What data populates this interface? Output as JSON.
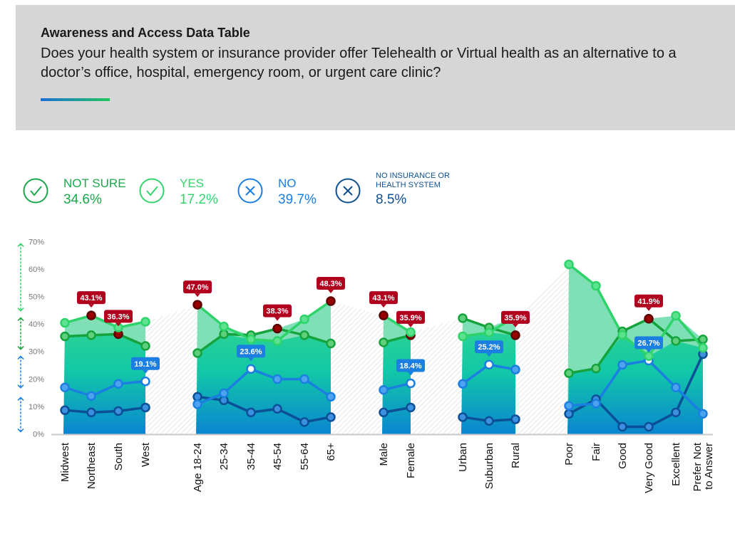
{
  "header": {
    "title": "Awareness and Access Data Table",
    "question": "Does your health system or insurance provider offer Telehealth or Virtual health as an alternative to a doctor’s office, hospital, emergency room, or urgent care clinic?"
  },
  "legend": [
    {
      "name": "NOT SURE",
      "value": "34.6%",
      "icon": "check-circle-icon",
      "color": "#1aa84a"
    },
    {
      "name": "YES",
      "value": "17.2%",
      "icon": "check-circle-icon",
      "color": "#35d46e"
    },
    {
      "name": "NO",
      "value": "39.7%",
      "icon": "x-circle-icon",
      "color": "#1a7fe0"
    },
    {
      "name": "NO INSURANCE OR HEALTH SYSTEM",
      "value": "8.5%",
      "icon": "x-circle-icon",
      "color": "#0d4f91"
    }
  ],
  "chart_data": {
    "type": "line",
    "ylim": [
      0,
      70
    ],
    "yticks": [
      "0%",
      "10%",
      "20%",
      "30%",
      "40%",
      "50%",
      "60%",
      "70%"
    ],
    "grid": false,
    "legend_position": "top-left",
    "groups": [
      {
        "categories": [
          "Midwest",
          "Northeast",
          "South",
          "West"
        ]
      },
      {
        "categories": [
          "Age 18-24",
          "25-34",
          "35-44",
          "45-54",
          "55-64",
          "65+"
        ]
      },
      {
        "categories": [
          "Male",
          "Female"
        ]
      },
      {
        "categories": [
          "Urban",
          "Suburban",
          "Rural"
        ]
      },
      {
        "categories": [
          "Poor",
          "Fair",
          "Good",
          "Very Good",
          "Excellent",
          "Prefer Not to Answer"
        ]
      }
    ],
    "series": [
      {
        "key": "yes",
        "color": "#2ed36a",
        "values": [
          40.4,
          43.1,
          38.7,
          40.8,
          47.0,
          39.1,
          34.4,
          33.8,
          41.7,
          48.3,
          43.1,
          37.0,
          35.5,
          36.9,
          42.6,
          61.7,
          53.9,
          36.0,
          28.3,
          43.0,
          31.3
        ]
      },
      {
        "key": "not_sure",
        "color": "#14a33c",
        "values": [
          35.5,
          35.9,
          36.3,
          32.0,
          29.4,
          36.3,
          35.9,
          38.3,
          35.9,
          32.9,
          33.3,
          35.9,
          42.1,
          38.7,
          35.9,
          22.1,
          23.8,
          37.3,
          41.9,
          33.8,
          34.4
        ]
      },
      {
        "key": "no",
        "color": "#1a7fe0",
        "values": [
          16.9,
          13.8,
          18.2,
          19.1,
          10.8,
          14.8,
          23.6,
          19.9,
          19.9,
          13.5,
          16.0,
          18.4,
          18.2,
          25.2,
          23.4,
          10.2,
          11.0,
          25.1,
          26.7,
          16.9,
          7.3
        ]
      },
      {
        "key": "no_insurance",
        "color": "#0b4f96",
        "values": [
          8.6,
          7.8,
          8.3,
          9.6,
          13.5,
          12.2,
          7.8,
          9.1,
          4.3,
          6.1,
          7.8,
          9.6,
          6.1,
          4.7,
          5.3,
          7.3,
          12.6,
          2.6,
          2.6,
          7.8,
          29.0
        ]
      }
    ],
    "annotations": [
      {
        "index": 1,
        "series": "yes",
        "label": "43.1%",
        "kind": "red"
      },
      {
        "index": 2,
        "series": "not_sure",
        "label": "36.3%",
        "kind": "red"
      },
      {
        "index": 3,
        "series": "no",
        "label": "19.1%",
        "kind": "blue"
      },
      {
        "index": 4,
        "series": "yes",
        "label": "47.0%",
        "kind": "red"
      },
      {
        "index": 6,
        "series": "no",
        "label": "23.6%",
        "kind": "blue"
      },
      {
        "index": 7,
        "series": "not_sure",
        "label": "38.3%",
        "kind": "red"
      },
      {
        "index": 9,
        "series": "yes",
        "label": "48.3%",
        "kind": "red"
      },
      {
        "index": 10,
        "series": "yes",
        "label": "43.1%",
        "kind": "red"
      },
      {
        "index": 11,
        "series": "not_sure",
        "label": "35.9%",
        "kind": "red"
      },
      {
        "index": 11,
        "series": "no",
        "label": "18.4%",
        "kind": "blue"
      },
      {
        "index": 13,
        "series": "no",
        "label": "25.2%",
        "kind": "blue"
      },
      {
        "index": 14,
        "series": "not_sure",
        "label": "35.9%",
        "kind": "red"
      },
      {
        "index": 18,
        "series": "not_sure",
        "label": "41.9%",
        "kind": "red"
      },
      {
        "index": 18,
        "series": "no",
        "label": "26.7%",
        "kind": "blue"
      }
    ],
    "highlight_colors": {
      "red": "#b0001e",
      "blue": "#1a7fe0"
    }
  }
}
